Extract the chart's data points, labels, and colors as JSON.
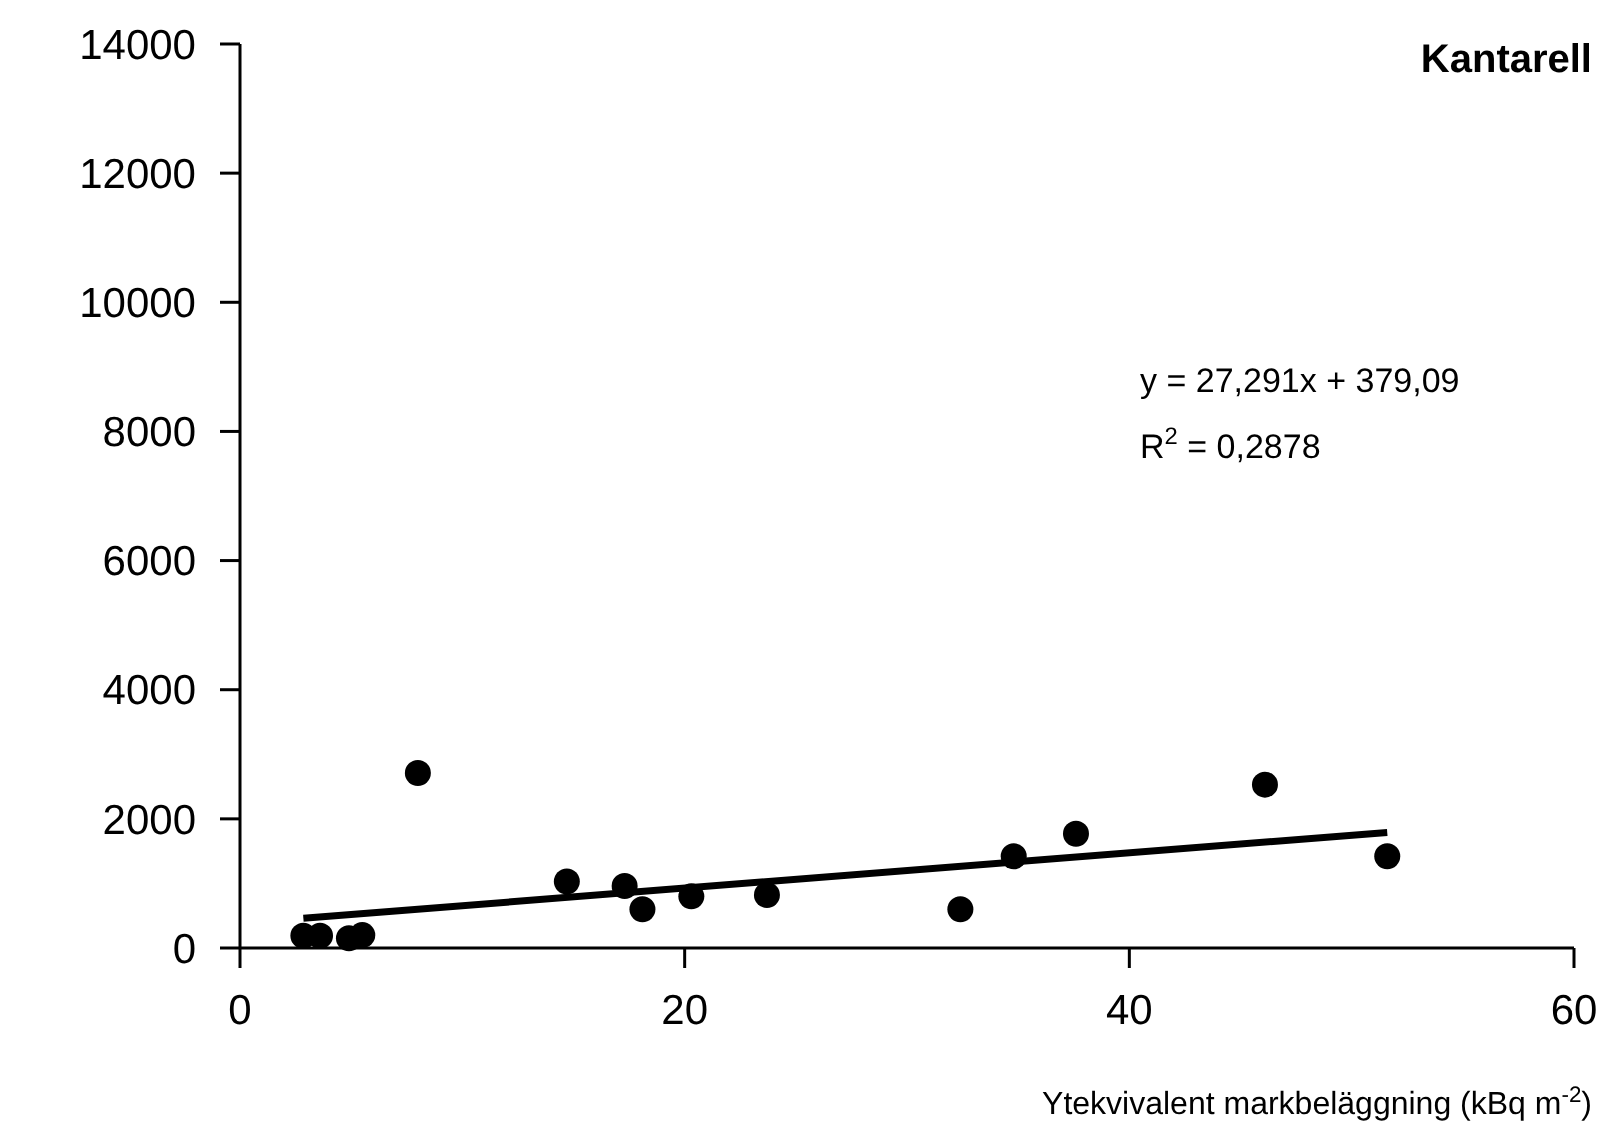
{
  "chart_data": {
    "type": "scatter",
    "title": "Kantarell",
    "xlabel": "Ytekvivalent markbeläggning (kBq m$^{-2}$)",
    "annotations": [
      "y = 27,291x + 379,09",
      "R$^{2}$ = 0,2878"
    ],
    "xlim": [
      0,
      60
    ],
    "xticks": [
      0,
      20,
      40,
      60
    ],
    "ylim": [
      0,
      14000
    ],
    "yticks": [
      0,
      2000,
      4000,
      6000,
      8000,
      10000,
      12000,
      14000
    ],
    "grid": false,
    "series": [
      {
        "color": "#000000",
        "marker": "circle",
        "x": [
          2.85,
          3.6,
          4.9,
          5.5,
          8.0,
          14.7,
          17.3,
          18.1,
          20.3,
          23.7,
          32.4,
          34.8,
          37.6,
          46.1,
          51.6
        ],
        "values": [
          190,
          190,
          150,
          200,
          2710,
          1030,
          960,
          600,
          800,
          820,
          600,
          1420,
          1770,
          2530,
          1420
        ]
      },
      {
        "type": "line",
        "color": "#000000",
        "line_style": "solid",
        "x": [
          2.85,
          51.6
        ],
        "values": [
          460,
          1790
        ]
      }
    ]
  }
}
